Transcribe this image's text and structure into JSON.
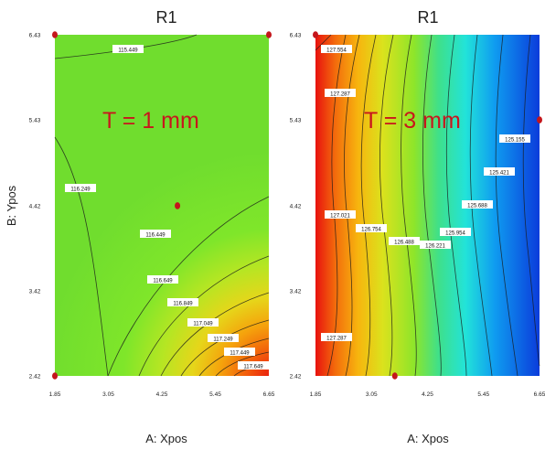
{
  "chart_data": [
    {
      "type": "contour",
      "title": "R1",
      "xlabel": "A: Xpos",
      "ylabel": "B: Ypos",
      "x_ticks": [
        "1.85",
        "3.05",
        "4.25",
        "5.45",
        "6.65"
      ],
      "y_ticks": [
        "2.42",
        "3.42",
        "4.42",
        "5.43",
        "6.43"
      ],
      "xlim": [
        1.85,
        6.65
      ],
      "ylim": [
        2.42,
        6.43
      ],
      "annotation": "T = 1 mm",
      "contour_levels": [
        "115.449",
        "116.249",
        "116.449",
        "116.649",
        "116.849",
        "117.049",
        "117.249",
        "117.449",
        "117.649"
      ],
      "design_points": [
        {
          "x": 1.85,
          "y": 6.43
        },
        {
          "x": 6.65,
          "y": 6.43
        },
        {
          "x": 4.6,
          "y": 4.42
        },
        {
          "x": 1.85,
          "y": 2.42
        }
      ]
    },
    {
      "type": "contour",
      "title": "R1",
      "xlabel": "A: Xpos",
      "ylabel": "",
      "x_ticks": [
        "1.85",
        "3.05",
        "4.25",
        "5.45",
        "6.65"
      ],
      "y_ticks": [
        "2.42",
        "3.42",
        "4.42",
        "5.43",
        "6.43"
      ],
      "xlim": [
        1.85,
        6.65
      ],
      "ylim": [
        2.42,
        6.43
      ],
      "annotation": "T = 3 mm",
      "contour_levels": [
        "127.554",
        "127.287",
        "127.021",
        "126.754",
        "126.488",
        "126.221",
        "125.954",
        "125.688",
        "125.421",
        "125.155",
        "127.287"
      ],
      "design_points": [
        {
          "x": 1.85,
          "y": 6.43
        },
        {
          "x": 6.65,
          "y": 5.43
        },
        {
          "x": 3.55,
          "y": 2.42
        }
      ]
    }
  ]
}
